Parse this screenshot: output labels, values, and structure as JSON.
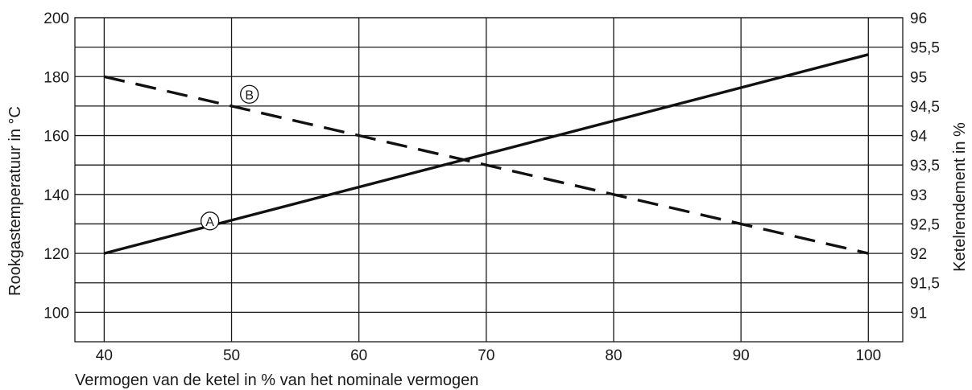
{
  "chart_data": {
    "type": "line",
    "xlabel": "Vermogen van de ketel in % van het nominale vermogen",
    "ylabel_left": "Rookgastemperatuur in °C",
    "ylabel_right": "Ketelrendement in %",
    "x_ticks": [
      "40",
      "50",
      "60",
      "70",
      "80",
      "90",
      "100"
    ],
    "y_left_ticks": [
      "100",
      "120",
      "140",
      "160",
      "180",
      "200"
    ],
    "y_right_ticks": [
      "91",
      "91,5",
      "92",
      "92,5",
      "93",
      "93,5",
      "94",
      "94,5",
      "95",
      "95,5",
      "96"
    ],
    "xlim": [
      37.7,
      102.7
    ],
    "ylim_left": [
      90,
      200
    ],
    "ylim_right": [
      90.5,
      96
    ],
    "grid": true,
    "series": [
      {
        "name": "A",
        "axis": "left",
        "style": "solid",
        "x": [
          40,
          100
        ],
        "y": [
          120,
          187.5
        ],
        "label_at": [
          48.3,
          131
        ]
      },
      {
        "name": "B",
        "axis": "right",
        "style": "dashed",
        "x": [
          40,
          100
        ],
        "y": [
          95,
          92
        ],
        "label_at": [
          51.4,
          94.7
        ]
      }
    ],
    "colors": {
      "line": "#111111",
      "grid": "#1a1a1a"
    }
  }
}
